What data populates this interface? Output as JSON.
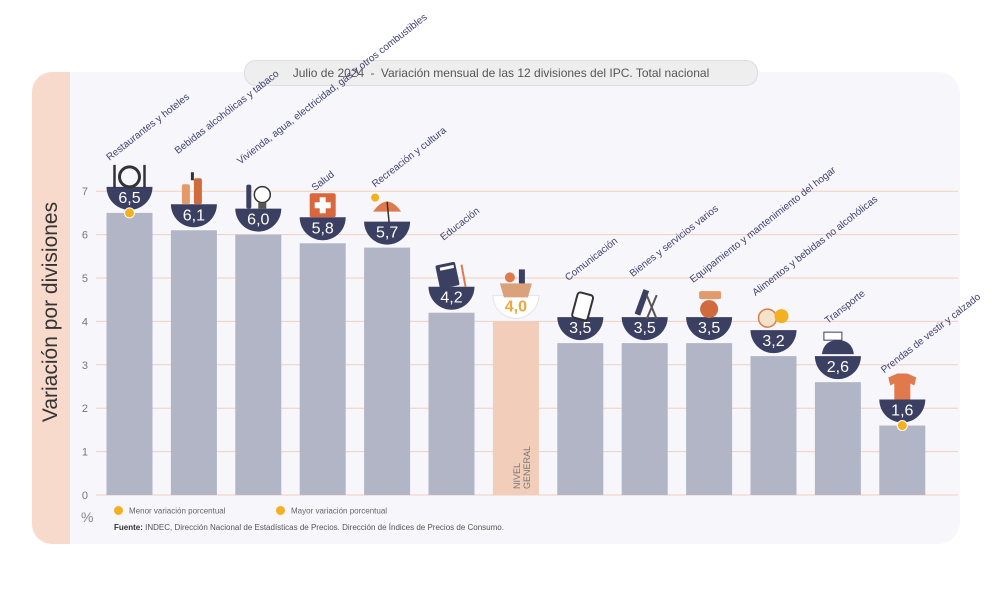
{
  "title": "Julio de 2024 - Variación mensual de las 12 divisiones del IPC. Total nacional",
  "title_parts": {
    "date": "Julio de 2024",
    "separator": "-",
    "text": "Variación mensual de las 12 divisiones del IPC. Total nacional"
  },
  "unit_symbol": "%",
  "legend": {
    "min_label": "Menor variación porcentual",
    "max_label": "Mayor variación porcentual"
  },
  "source": {
    "label": "Fuente:",
    "text": "INDEC, Dirección Nacional de Estadísticas de Precios. Dirección de Índices de Precios de Consumo."
  },
  "colors": {
    "bar": "#b1b5c6",
    "general_bar": "#f2cdb9",
    "badge": "#3b3f61",
    "general_value": "#f0a640",
    "grid": "#f0cfc0",
    "dot_min": "#f3b020",
    "dot_max": "#f3b020",
    "label_text": "#3e4270"
  },
  "chart_data": {
    "type": "bar",
    "ylabel": "Variación por divisiones",
    "ylim": [
      0,
      7
    ],
    "yticks": [
      0,
      1,
      2,
      3,
      4,
      5,
      6,
      7
    ],
    "grid": true,
    "bars": [
      {
        "label": "Restaurantes y hoteles",
        "value": 6.5,
        "display": "6,5",
        "icon": "cutlery-plate-icon",
        "highlight": "max"
      },
      {
        "label": "Bebidas alcohólicas y tabaco",
        "value": 6.1,
        "display": "6,1",
        "icon": "bottles-icon"
      },
      {
        "label": "Vivienda, agua, electricidad, gas y otros combustibles",
        "value": 6.0,
        "display": "6,0",
        "icon": "lightbulb-icon"
      },
      {
        "label": "Salud",
        "value": 5.8,
        "display": "5,8",
        "icon": "first-aid-icon"
      },
      {
        "label": "Recreación y cultura",
        "value": 5.7,
        "display": "5,7",
        "icon": "beach-umbrella-icon"
      },
      {
        "label": "Educación",
        "value": 4.2,
        "display": "4,2",
        "icon": "book-icon"
      },
      {
        "label": "NIVEL GENERAL",
        "value": 4.0,
        "display": "4,0",
        "icon": "shopping-basket-icon",
        "general": true
      },
      {
        "label": "Comunicación",
        "value": 3.5,
        "display": "3,5",
        "icon": "smartphone-icon"
      },
      {
        "label": "Bienes y servicios varios",
        "value": 3.5,
        "display": "3,5",
        "icon": "comb-scissors-icon"
      },
      {
        "label": "Equipamiento y mantenimiento del hogar",
        "value": 3.5,
        "display": "3,5",
        "icon": "appliance-icon"
      },
      {
        "label": "Alimentos y bebidas no alcohólicas",
        "value": 3.2,
        "display": "3,2",
        "icon": "food-icon"
      },
      {
        "label": "Transporte",
        "value": 2.6,
        "display": "2,6",
        "icon": "car-sube-icon"
      },
      {
        "label": "Prendas de vestir y calzado",
        "value": 1.6,
        "display": "1,6",
        "icon": "tshirt-icon",
        "highlight": "min"
      }
    ]
  }
}
